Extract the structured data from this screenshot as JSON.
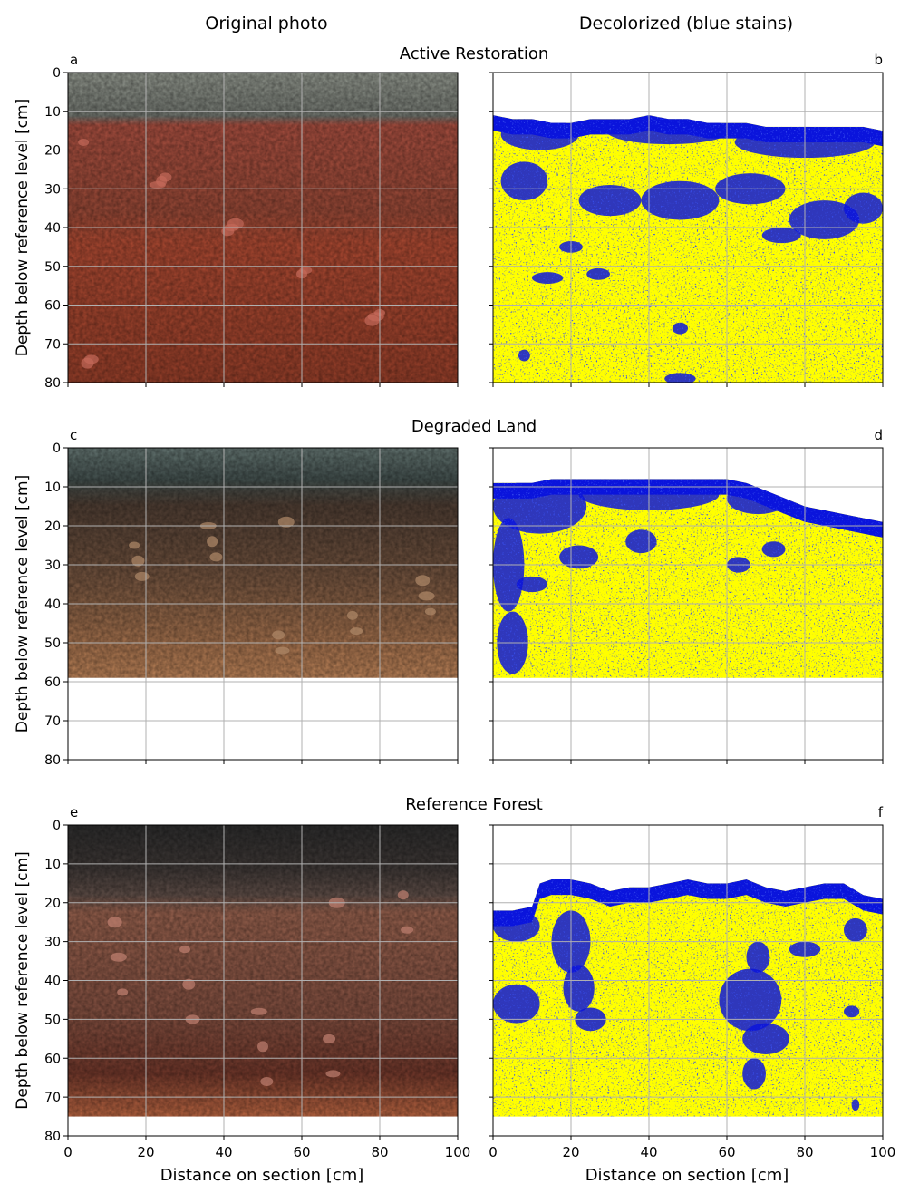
{
  "column_titles": [
    "Original photo",
    "Decolorized (blue stains)"
  ],
  "chart_data": {
    "type": "image-grid",
    "rows": [
      {
        "title": "Active Restoration",
        "panels": [
          "a",
          "b"
        ],
        "profile_depth_bottom_cm": 80,
        "stain_surface": {
          "x": [
            0,
            5,
            10,
            15,
            20,
            25,
            30,
            35,
            40,
            45,
            50,
            55,
            60,
            65,
            70,
            75,
            80,
            85,
            90,
            95,
            100
          ],
          "depth": [
            11,
            12,
            12,
            13,
            13,
            12,
            12,
            12,
            11,
            12,
            12,
            13,
            13,
            13,
            14,
            14,
            14,
            14,
            14,
            14,
            15
          ]
        },
        "stain_blobs": [
          {
            "cx": 12,
            "cy": 16,
            "rx": 10,
            "ry": 4
          },
          {
            "cx": 45,
            "cy": 15,
            "rx": 16,
            "ry": 3.5
          },
          {
            "cx": 80,
            "cy": 18,
            "rx": 18,
            "ry": 4
          },
          {
            "cx": 8,
            "cy": 28,
            "rx": 6,
            "ry": 5
          },
          {
            "cx": 30,
            "cy": 33,
            "rx": 8,
            "ry": 4
          },
          {
            "cx": 48,
            "cy": 33,
            "rx": 10,
            "ry": 5
          },
          {
            "cx": 66,
            "cy": 30,
            "rx": 9,
            "ry": 4
          },
          {
            "cx": 85,
            "cy": 38,
            "rx": 9,
            "ry": 5
          },
          {
            "cx": 95,
            "cy": 35,
            "rx": 5,
            "ry": 4
          },
          {
            "cx": 74,
            "cy": 42,
            "rx": 5,
            "ry": 2
          },
          {
            "cx": 20,
            "cy": 45,
            "rx": 3,
            "ry": 1.5
          },
          {
            "cx": 14,
            "cy": 53,
            "rx": 4,
            "ry": 1.5
          },
          {
            "cx": 27,
            "cy": 52,
            "rx": 3,
            "ry": 1.5
          },
          {
            "cx": 48,
            "cy": 79,
            "rx": 4,
            "ry": 1.5
          },
          {
            "cx": 48,
            "cy": 66,
            "rx": 2,
            "ry": 1.5
          },
          {
            "cx": 8,
            "cy": 73,
            "rx": 1.5,
            "ry": 1.5
          }
        ]
      },
      {
        "title": "Degraded Land",
        "panels": [
          "c",
          "d"
        ],
        "profile_depth_bottom_cm": 59,
        "stain_surface": {
          "x": [
            0,
            5,
            10,
            15,
            20,
            25,
            30,
            35,
            40,
            45,
            50,
            55,
            60,
            65,
            70,
            75,
            80,
            85,
            90,
            95,
            100
          ],
          "depth": [
            9,
            9,
            9,
            8,
            8,
            8,
            8,
            8,
            8,
            8,
            8,
            8,
            8,
            9,
            11,
            13,
            15,
            16,
            17,
            18,
            19
          ]
        },
        "stain_blobs": [
          {
            "cx": 12,
            "cy": 15,
            "rx": 12,
            "ry": 7
          },
          {
            "cx": 40,
            "cy": 12,
            "rx": 18,
            "ry": 4
          },
          {
            "cx": 68,
            "cy": 13,
            "rx": 8,
            "ry": 4
          },
          {
            "cx": 4,
            "cy": 30,
            "rx": 4,
            "ry": 12
          },
          {
            "cx": 10,
            "cy": 35,
            "rx": 4,
            "ry": 2
          },
          {
            "cx": 22,
            "cy": 28,
            "rx": 5,
            "ry": 3
          },
          {
            "cx": 38,
            "cy": 24,
            "rx": 4,
            "ry": 3
          },
          {
            "cx": 5,
            "cy": 50,
            "rx": 4,
            "ry": 8
          },
          {
            "cx": 63,
            "cy": 30,
            "rx": 3,
            "ry": 2
          },
          {
            "cx": 72,
            "cy": 26,
            "rx": 3,
            "ry": 2
          }
        ]
      },
      {
        "title": "Reference Forest",
        "panels": [
          "e",
          "f"
        ],
        "profile_depth_bottom_cm": 75,
        "stain_surface": {
          "x": [
            0,
            5,
            10,
            12,
            15,
            20,
            25,
            30,
            35,
            40,
            45,
            50,
            55,
            60,
            65,
            70,
            75,
            80,
            85,
            90,
            95,
            100
          ],
          "depth": [
            22,
            22,
            21,
            15,
            14,
            14,
            15,
            17,
            16,
            16,
            15,
            14,
            15,
            15,
            14,
            16,
            17,
            16,
            15,
            15,
            18,
            19
          ]
        },
        "stain_blobs": [
          {
            "cx": 6,
            "cy": 26,
            "rx": 6,
            "ry": 4
          },
          {
            "cx": 20,
            "cy": 30,
            "rx": 5,
            "ry": 8
          },
          {
            "cx": 22,
            "cy": 42,
            "rx": 4,
            "ry": 6
          },
          {
            "cx": 25,
            "cy": 50,
            "rx": 4,
            "ry": 3
          },
          {
            "cx": 6,
            "cy": 46,
            "rx": 6,
            "ry": 5
          },
          {
            "cx": 66,
            "cy": 45,
            "rx": 8,
            "ry": 8
          },
          {
            "cx": 70,
            "cy": 55,
            "rx": 6,
            "ry": 4
          },
          {
            "cx": 67,
            "cy": 64,
            "rx": 3,
            "ry": 4
          },
          {
            "cx": 68,
            "cy": 34,
            "rx": 3,
            "ry": 4
          },
          {
            "cx": 93,
            "cy": 27,
            "rx": 3,
            "ry": 3
          },
          {
            "cx": 92,
            "cy": 48,
            "rx": 2,
            "ry": 1.5
          },
          {
            "cx": 80,
            "cy": 32,
            "rx": 4,
            "ry": 2
          },
          {
            "cx": 93,
            "cy": 72,
            "rx": 1,
            "ry": 1.5
          }
        ]
      }
    ],
    "xlabel": "Distance on section [cm]",
    "ylabel": "Depth below reference level [cm]",
    "x_ticks": [
      0,
      20,
      40,
      60,
      80,
      100
    ],
    "y_ticks": [
      0,
      10,
      20,
      30,
      40,
      50,
      60,
      70,
      80
    ],
    "xlim": [
      0,
      100
    ],
    "ylim": [
      0,
      80
    ],
    "grid": true,
    "colors": {
      "stain": "#0a14dc",
      "matrix": "#ffff00",
      "grid": "#b0b0b0"
    }
  }
}
